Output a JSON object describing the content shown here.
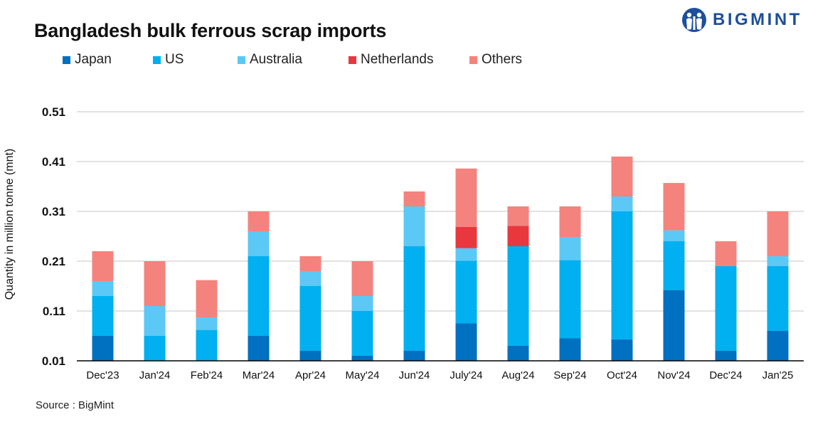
{
  "header": {
    "title": "Bangladesh bulk ferrous scrap imports",
    "logo_text": "BIGMINT",
    "logo_icon": "bigmint-logo-icon"
  },
  "source": "Source : BigMint",
  "chart_data": {
    "type": "bar",
    "stacked": true,
    "title": "Bangladesh bulk ferrous scrap imports",
    "xlabel": "",
    "ylabel": "Quantity in million tonne (mnt)",
    "ylim": [
      0.01,
      0.51
    ],
    "yticks": [
      "0.01",
      "0.11",
      "0.21",
      "0.31",
      "0.41",
      "0.51"
    ],
    "grid": true,
    "legend_position": "top-left",
    "categories": [
      "Dec'23",
      "Jan'24",
      "Feb'24",
      "Mar'24",
      "Apr'24",
      "May'24",
      "Jun'24",
      "July'24",
      "Aug'24",
      "Sep'24",
      "Oct'24",
      "Nov'24",
      "Dec'24",
      "Jan'25"
    ],
    "series": [
      {
        "name": "Japan",
        "color": "#0070c0",
        "values": [
          0.05,
          0.0,
          0.0,
          0.05,
          0.02,
          0.01,
          0.02,
          0.075,
          0.03,
          0.045,
          0.043,
          0.142,
          0.02,
          0.06
        ]
      },
      {
        "name": "US",
        "color": "#00b0f0",
        "values": [
          0.08,
          0.05,
          0.062,
          0.16,
          0.13,
          0.09,
          0.21,
          0.126,
          0.2,
          0.157,
          0.257,
          0.098,
          0.17,
          0.13
        ]
      },
      {
        "name": "Australia",
        "color": "#5bc8f5",
        "values": [
          0.03,
          0.06,
          0.025,
          0.05,
          0.03,
          0.03,
          0.08,
          0.025,
          0.0,
          0.046,
          0.03,
          0.022,
          0.0,
          0.02
        ]
      },
      {
        "name": "Netherlands",
        "color": "#e8383d",
        "values": [
          0.0,
          0.0,
          0.0,
          0.0,
          0.0,
          0.0,
          0.0,
          0.043,
          0.041,
          0.0,
          0.0,
          0.0,
          0.0,
          0.0
        ]
      },
      {
        "name": "Others",
        "color": "#f4837d",
        "values": [
          0.06,
          0.09,
          0.075,
          0.04,
          0.03,
          0.07,
          0.03,
          0.117,
          0.039,
          0.062,
          0.08,
          0.095,
          0.05,
          0.09
        ]
      }
    ]
  }
}
